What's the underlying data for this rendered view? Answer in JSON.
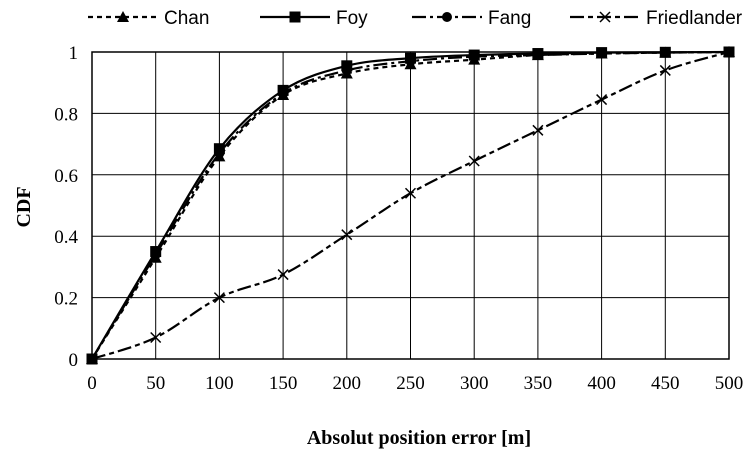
{
  "chart_data": {
    "type": "line",
    "title": "",
    "xlabel": "Absolut position error [m]",
    "ylabel": "CDF",
    "xlim": [
      0,
      500
    ],
    "ylim": [
      0,
      1
    ],
    "x_ticks": [
      "0",
      "50",
      "100",
      "150",
      "200",
      "250",
      "300",
      "350",
      "400",
      "450",
      "500"
    ],
    "y_ticks": [
      "0",
      "0.2",
      "0.4",
      "0.6",
      "0.8",
      "1"
    ],
    "grid": true,
    "legend_position": "top",
    "x": [
      0,
      50,
      100,
      150,
      200,
      250,
      300,
      350,
      400,
      450,
      500
    ],
    "series": [
      {
        "name": "Chan",
        "marker": "triangle",
        "dash": "short-dash",
        "values": [
          0,
          0.33,
          0.66,
          0.86,
          0.93,
          0.96,
          0.975,
          0.99,
          0.995,
          0.998,
          1.0
        ]
      },
      {
        "name": "Foy",
        "marker": "square",
        "dash": "solid",
        "values": [
          0,
          0.35,
          0.685,
          0.875,
          0.955,
          0.98,
          0.99,
          0.995,
          0.998,
          0.999,
          1.0
        ]
      },
      {
        "name": "Fang",
        "marker": "circle",
        "dash": "long-dash-dot",
        "values": [
          0,
          0.34,
          0.67,
          0.865,
          0.94,
          0.97,
          0.985,
          0.99,
          0.995,
          0.998,
          1.0
        ]
      },
      {
        "name": "Friedlander",
        "marker": "cross",
        "dash": "long-short-dash",
        "values": [
          0,
          0.07,
          0.2,
          0.275,
          0.405,
          0.54,
          0.645,
          0.745,
          0.845,
          0.94,
          1.0
        ]
      }
    ]
  }
}
